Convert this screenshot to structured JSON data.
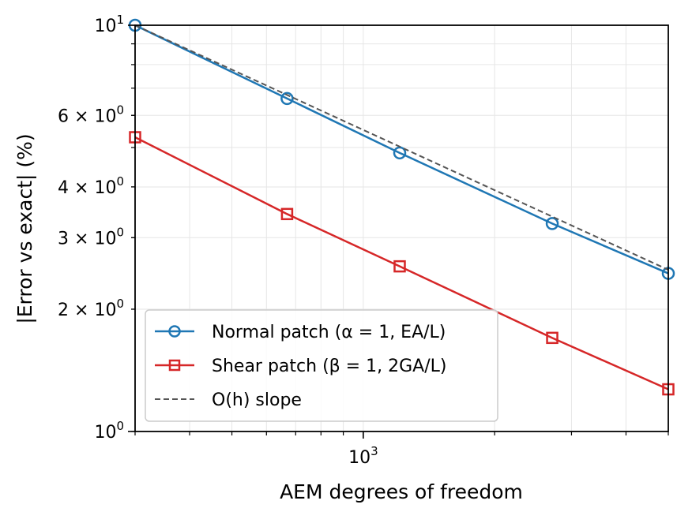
{
  "chart_data": {
    "type": "line",
    "xlabel": "AEM degrees of freedom",
    "ylabel": "|Error vs exact| (%)",
    "xscale": "log",
    "yscale": "log",
    "xlim": [
      300,
      5000
    ],
    "ylim": [
      1,
      10
    ],
    "grid": true,
    "legend_position": "lower-left",
    "x_ticks": [
      {
        "value": 1000,
        "base": "10",
        "exp": "3"
      }
    ],
    "y_ticks": [
      {
        "value": 1,
        "mant": "",
        "base": "10",
        "exp": "0"
      },
      {
        "value": 2,
        "mant": "2",
        "base": "10",
        "exp": "0"
      },
      {
        "value": 3,
        "mant": "3",
        "base": "10",
        "exp": "0"
      },
      {
        "value": 4,
        "mant": "4",
        "base": "10",
        "exp": "0"
      },
      {
        "value": 6,
        "mant": "6",
        "base": "10",
        "exp": "0"
      },
      {
        "value": 10,
        "mant": "",
        "base": "10",
        "exp": "1"
      }
    ],
    "series": [
      {
        "name": "Normal patch (α = 1, EA/L)",
        "color": "#1f77b4",
        "marker": "circle",
        "line_style": "solid",
        "x": [
          300,
          669,
          1212,
          2710,
          5000
        ],
        "y": [
          10.0,
          6.6,
          4.85,
          3.25,
          2.45
        ]
      },
      {
        "name": "Shear patch (β = 1, 2GA/L)",
        "color": "#d62728",
        "marker": "square",
        "line_style": "solid",
        "x": [
          300,
          669,
          1212,
          2710,
          5000
        ],
        "y": [
          5.3,
          3.43,
          2.55,
          1.7,
          1.27
        ]
      },
      {
        "name": "O(h) slope",
        "color": "#555555",
        "marker": "none",
        "line_style": "dashed",
        "x": [
          300,
          5000
        ],
        "y": [
          10.0,
          2.5
        ]
      }
    ]
  }
}
